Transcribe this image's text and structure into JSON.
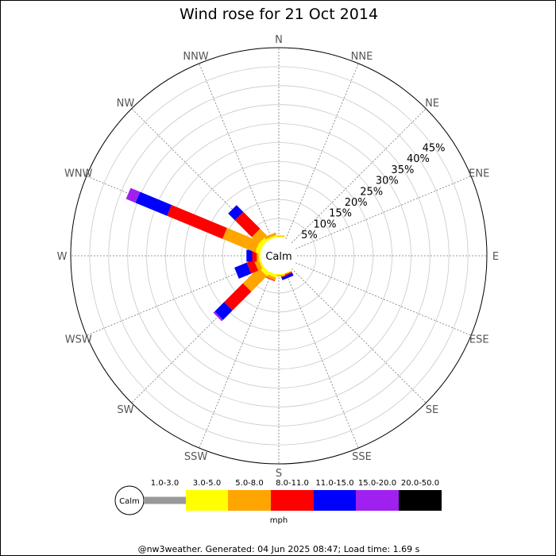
{
  "chart_data": {
    "type": "windrose",
    "title": "Wind rose for 21 Oct 2014",
    "directions": [
      "N",
      "NNE",
      "NE",
      "ENE",
      "E",
      "ESE",
      "SE",
      "SSE",
      "S",
      "SSW",
      "SW",
      "WSW",
      "W",
      "WNW",
      "NW",
      "NNW"
    ],
    "ring_labels": [
      "5%",
      "10%",
      "15%",
      "20%",
      "25%",
      "30%",
      "35%",
      "40%",
      "45%"
    ],
    "radial_max_percent": 50,
    "calm_label": "Calm",
    "speed_bins": [
      {
        "label": "1.0-3.0",
        "color": "#999999"
      },
      {
        "label": "3.0-5.0",
        "color": "#ffff00"
      },
      {
        "label": "5.0-8.0",
        "color": "#ffa500"
      },
      {
        "label": "8.0-11.0",
        "color": "#ff0000"
      },
      {
        "label": "11.0-15.0",
        "color": "#0000ff"
      },
      {
        "label": "15.0-20.0",
        "color": "#a020f0"
      },
      {
        "label": "20.0-50.0",
        "color": "#000000"
      }
    ],
    "unit": "mph",
    "series": [
      {
        "direction": "N",
        "values": [
          0,
          0.3,
          0.2,
          0,
          0,
          0,
          0
        ]
      },
      {
        "direction": "NNE",
        "values": [
          0,
          0,
          0,
          0,
          0,
          0,
          0
        ]
      },
      {
        "direction": "NE",
        "values": [
          0,
          0,
          0,
          0,
          0,
          0,
          0
        ]
      },
      {
        "direction": "ENE",
        "values": [
          0,
          0,
          0,
          0,
          0,
          0,
          0
        ]
      },
      {
        "direction": "E",
        "values": [
          0,
          0,
          0,
          0,
          0,
          0,
          0
        ]
      },
      {
        "direction": "ESE",
        "values": [
          0,
          0,
          0,
          0,
          0,
          0,
          0
        ]
      },
      {
        "direction": "SE",
        "values": [
          0,
          0,
          0,
          0,
          0,
          0,
          0
        ]
      },
      {
        "direction": "SSE",
        "values": [
          0,
          0.2,
          0.2,
          0.3,
          0.8,
          0,
          0
        ]
      },
      {
        "direction": "S",
        "values": [
          0,
          0.3,
          0.3,
          0,
          0,
          0,
          0
        ]
      },
      {
        "direction": "SSW",
        "values": [
          0,
          0.8,
          0.8,
          0.2,
          0,
          0,
          0
        ]
      },
      {
        "direction": "SW",
        "values": [
          0,
          1.2,
          5.8,
          7.0,
          3.5,
          0.5,
          0
        ]
      },
      {
        "direction": "WSW",
        "values": [
          0,
          0.5,
          1.2,
          2.0,
          3.5,
          0,
          0
        ]
      },
      {
        "direction": "W",
        "values": [
          0,
          0.5,
          0.5,
          1.2,
          1.5,
          0,
          0
        ]
      },
      {
        "direction": "WNW",
        "values": [
          0,
          1.3,
          9.3,
          15.8,
          9.0,
          2.7,
          0
        ]
      },
      {
        "direction": "NW",
        "values": [
          0,
          1.2,
          2.5,
          6.3,
          2.5,
          0,
          0
        ]
      },
      {
        "direction": "NNW",
        "values": [
          0,
          0.5,
          0.7,
          0,
          0,
          0,
          0
        ]
      }
    ],
    "grid": true
  },
  "footer": "@nw3weather. Generated: 04 Jun 2025 08:47; Load time: 1.69 s"
}
